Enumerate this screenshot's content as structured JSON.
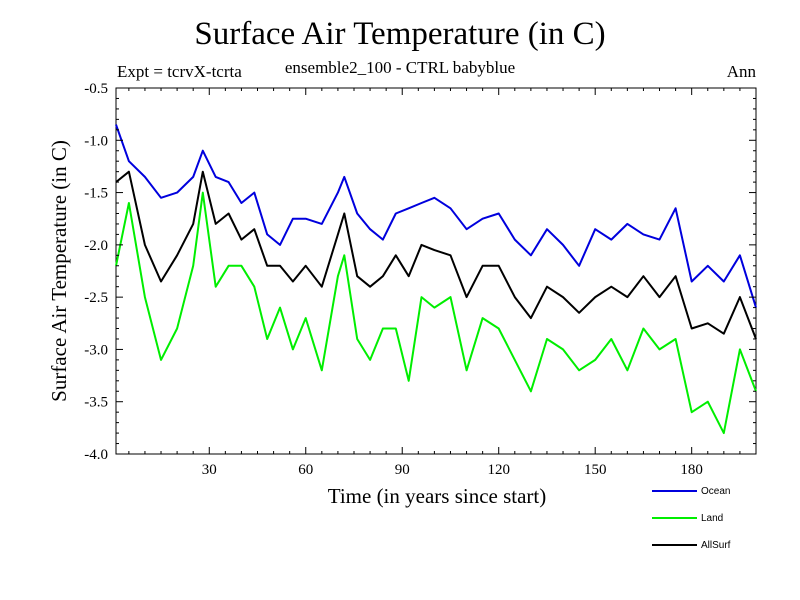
{
  "chart_data": {
    "type": "line",
    "title": "Surface Air Temperature (in C)",
    "subtitle": "ensemble2_100 - CTRL babyblue",
    "expt_label": "Expt = tcrvX-tcrta",
    "period_label": "Ann",
    "xlabel": "Time (in years since start)",
    "ylabel": "Surface Air Temperature (in C)",
    "xlim": [
      1,
      200
    ],
    "ylim": [
      -4.0,
      -0.5
    ],
    "xticks": [
      30,
      60,
      90,
      120,
      150,
      180
    ],
    "yticks": [
      -4.0,
      -3.5,
      -3.0,
      -2.5,
      -2.0,
      -1.5,
      -1.0,
      -0.5
    ],
    "ytick_labels": [
      "-4.0",
      "-3.5",
      "-3.0",
      "-2.5",
      "-2.0",
      "-1.5",
      "-1.0",
      "-0.5"
    ],
    "legend_position": "bottom-right",
    "series": [
      {
        "name": "Ocean",
        "color": "#0000dd",
        "x": [
          1,
          5,
          10,
          15,
          20,
          25,
          28,
          32,
          36,
          40,
          44,
          48,
          52,
          56,
          60,
          65,
          70,
          72,
          76,
          80,
          84,
          88,
          92,
          96,
          100,
          105,
          110,
          115,
          120,
          125,
          130,
          135,
          140,
          145,
          150,
          155,
          160,
          165,
          170,
          175,
          180,
          185,
          190,
          195,
          200
        ],
        "values": [
          -0.85,
          -1.2,
          -1.35,
          -1.55,
          -1.5,
          -1.35,
          -1.1,
          -1.35,
          -1.4,
          -1.6,
          -1.5,
          -1.9,
          -2.0,
          -1.75,
          -1.75,
          -1.8,
          -1.5,
          -1.35,
          -1.7,
          -1.85,
          -1.95,
          -1.7,
          -1.65,
          -1.6,
          -1.55,
          -1.65,
          -1.85,
          -1.75,
          -1.7,
          -1.95,
          -2.1,
          -1.85,
          -2.0,
          -2.2,
          -1.85,
          -1.95,
          -1.8,
          -1.9,
          -1.95,
          -1.65,
          -2.35,
          -2.2,
          -2.35,
          -2.1,
          -2.6
        ]
      },
      {
        "name": "Land",
        "color": "#00ee00",
        "x": [
          1,
          5,
          10,
          15,
          20,
          25,
          28,
          32,
          36,
          40,
          44,
          48,
          52,
          56,
          60,
          65,
          70,
          72,
          76,
          80,
          84,
          88,
          92,
          96,
          100,
          105,
          110,
          115,
          120,
          125,
          130,
          135,
          140,
          145,
          150,
          155,
          160,
          165,
          170,
          175,
          180,
          185,
          190,
          195,
          200
        ],
        "values": [
          -2.2,
          -1.6,
          -2.5,
          -3.1,
          -2.8,
          -2.2,
          -1.5,
          -2.4,
          -2.2,
          -2.2,
          -2.4,
          -2.9,
          -2.6,
          -3.0,
          -2.7,
          -3.2,
          -2.3,
          -2.1,
          -2.9,
          -3.1,
          -2.8,
          -2.8,
          -3.3,
          -2.5,
          -2.6,
          -2.5,
          -3.2,
          -2.7,
          -2.8,
          -3.1,
          -3.4,
          -2.9,
          -3.0,
          -3.2,
          -3.1,
          -2.9,
          -3.2,
          -2.8,
          -3.0,
          -2.9,
          -3.6,
          -3.5,
          -3.8,
          -3.0,
          -3.4
        ]
      },
      {
        "name": "AllSurf",
        "color": "#000000",
        "x": [
          1,
          5,
          10,
          15,
          20,
          25,
          28,
          32,
          36,
          40,
          44,
          48,
          52,
          56,
          60,
          65,
          70,
          72,
          76,
          80,
          84,
          88,
          92,
          96,
          100,
          105,
          110,
          115,
          120,
          125,
          130,
          135,
          140,
          145,
          150,
          155,
          160,
          165,
          170,
          175,
          180,
          185,
          190,
          195,
          200
        ],
        "values": [
          -1.4,
          -1.3,
          -2.0,
          -2.35,
          -2.1,
          -1.8,
          -1.3,
          -1.8,
          -1.7,
          -1.95,
          -1.85,
          -2.2,
          -2.2,
          -2.35,
          -2.2,
          -2.4,
          -1.9,
          -1.7,
          -2.3,
          -2.4,
          -2.3,
          -2.1,
          -2.3,
          -2.0,
          -2.05,
          -2.1,
          -2.5,
          -2.2,
          -2.2,
          -2.5,
          -2.7,
          -2.4,
          -2.5,
          -2.65,
          -2.5,
          -2.4,
          -2.5,
          -2.3,
          -2.5,
          -2.3,
          -2.8,
          -2.75,
          -2.85,
          -2.5,
          -2.9
        ]
      }
    ]
  }
}
